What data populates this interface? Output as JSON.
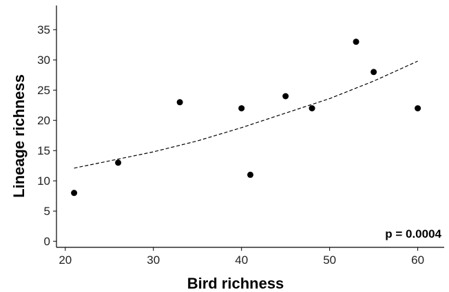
{
  "chart_data": {
    "type": "scatter",
    "title": "",
    "xlabel": "Bird richness",
    "ylabel": "Lineage richness",
    "xlim": [
      19,
      63
    ],
    "ylim": [
      -1,
      39
    ],
    "xticks": [
      20,
      30,
      40,
      50,
      60
    ],
    "yticks": [
      0,
      5,
      10,
      15,
      20,
      25,
      30,
      35
    ],
    "grid": false,
    "points": [
      {
        "x": 21,
        "y": 8
      },
      {
        "x": 26,
        "y": 13
      },
      {
        "x": 33,
        "y": 23
      },
      {
        "x": 40,
        "y": 22
      },
      {
        "x": 41,
        "y": 11
      },
      {
        "x": 45,
        "y": 24
      },
      {
        "x": 48,
        "y": 22
      },
      {
        "x": 53,
        "y": 33
      },
      {
        "x": 55,
        "y": 28
      },
      {
        "x": 60,
        "y": 22
      }
    ],
    "trend_line": {
      "style": "dashed",
      "x": [
        21,
        25,
        30,
        35,
        40,
        45,
        50,
        55,
        60
      ],
      "y": [
        12.1,
        13.3,
        14.8,
        16.6,
        18.8,
        21.2,
        23.6,
        26.5,
        29.8
      ]
    },
    "annotations": [
      {
        "text": "p = 0.0004",
        "position": "bottom-right"
      }
    ],
    "colors": {
      "points": "#000000",
      "trend_line": "#000000",
      "axes": "#000000"
    }
  }
}
